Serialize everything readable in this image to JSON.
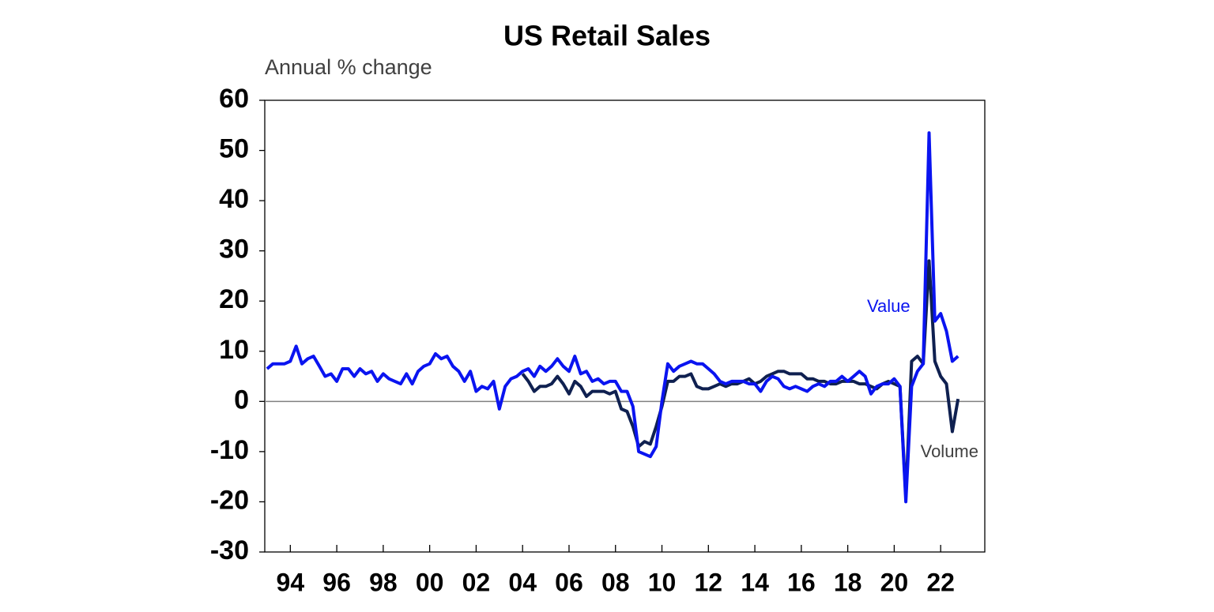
{
  "chart_data": {
    "type": "line",
    "title": "US Retail Sales",
    "subtitle": "Annual % change",
    "x": [
      1993,
      1993.25,
      1993.5,
      1993.75,
      1994,
      1994.25,
      1994.5,
      1994.75,
      1995,
      1995.25,
      1995.5,
      1995.75,
      1996,
      1996.25,
      1996.5,
      1996.75,
      1997,
      1997.25,
      1997.5,
      1997.75,
      1998,
      1998.25,
      1998.5,
      1998.75,
      1999,
      1999.25,
      1999.5,
      1999.75,
      2000,
      2000.25,
      2000.5,
      2000.75,
      2001,
      2001.25,
      2001.5,
      2001.75,
      2002,
      2002.25,
      2002.5,
      2002.75,
      2003,
      2003.25,
      2003.5,
      2003.75,
      2004,
      2004.25,
      2004.5,
      2004.75,
      2005,
      2005.25,
      2005.5,
      2005.75,
      2006,
      2006.25,
      2006.5,
      2006.75,
      2007,
      2007.25,
      2007.5,
      2007.75,
      2008,
      2008.25,
      2008.5,
      2008.75,
      2009,
      2009.25,
      2009.5,
      2009.75,
      2010,
      2010.25,
      2010.5,
      2010.75,
      2011,
      2011.25,
      2011.5,
      2011.75,
      2012,
      2012.25,
      2012.5,
      2012.75,
      2013,
      2013.25,
      2013.5,
      2013.75,
      2014,
      2014.25,
      2014.5,
      2014.75,
      2015,
      2015.25,
      2015.5,
      2015.75,
      2016,
      2016.25,
      2016.5,
      2016.75,
      2017,
      2017.25,
      2017.5,
      2017.75,
      2018,
      2018.25,
      2018.5,
      2018.75,
      2019,
      2019.25,
      2019.5,
      2019.75,
      2020,
      2020.25,
      2020.5,
      2020.75,
      2021,
      2021.25,
      2021.5,
      2021.75,
      2022,
      2022.25,
      2022.5,
      2022.75
    ],
    "series": [
      {
        "name": "Volume",
        "color": "#0f2050",
        "values": [
          null,
          null,
          null,
          null,
          null,
          null,
          null,
          null,
          null,
          null,
          null,
          null,
          null,
          null,
          null,
          null,
          null,
          null,
          null,
          null,
          null,
          null,
          null,
          null,
          null,
          null,
          null,
          null,
          null,
          null,
          null,
          null,
          null,
          null,
          null,
          null,
          null,
          null,
          null,
          null,
          null,
          null,
          null,
          null,
          5.5,
          4,
          2,
          3,
          3,
          3.5,
          5,
          3.5,
          1.5,
          4,
          3,
          1,
          2,
          2,
          2,
          1.5,
          2,
          -1.5,
          -2,
          -5,
          -9,
          -8,
          -8.5,
          -5,
          -1,
          4,
          4,
          5,
          5,
          5.5,
          3,
          2.5,
          2.5,
          3,
          3.5,
          3,
          3.5,
          3.5,
          4,
          4.5,
          3.5,
          4,
          5,
          5.5,
          6,
          6,
          5.5,
          5.5,
          5.5,
          4.5,
          4.5,
          4,
          4,
          3.5,
          3.5,
          4,
          4,
          4,
          3.5,
          3.5,
          3,
          2.5,
          3.5,
          4,
          3.5,
          3,
          -19,
          8,
          9,
          7.5,
          28,
          8,
          5,
          3.5,
          -6,
          0.5
        ]
      },
      {
        "name": "Value",
        "color": "#0a14f0",
        "values": [
          6.5,
          7.5,
          7.5,
          7.5,
          8,
          11,
          7.5,
          8.5,
          9,
          7,
          5,
          5.5,
          4,
          6.5,
          6.5,
          5,
          6.5,
          5.5,
          6,
          4,
          5.5,
          4.5,
          4,
          3.5,
          5.5,
          3.5,
          6,
          7,
          7.5,
          9.5,
          8.5,
          9,
          7,
          6,
          4,
          6,
          2,
          3,
          2.5,
          4,
          -1.5,
          3,
          4.5,
          5,
          6,
          6.5,
          5,
          7,
          6,
          7,
          8.5,
          7,
          6,
          9,
          5.5,
          6,
          4,
          4.5,
          3.5,
          4,
          4,
          2,
          2,
          -1,
          -10,
          -10.5,
          -11,
          -9,
          0,
          7.5,
          6,
          7,
          7.5,
          8,
          7.5,
          7.5,
          6.5,
          5.5,
          4,
          3.5,
          4,
          4,
          4,
          3.5,
          3.5,
          2,
          4,
          5,
          4.5,
          3,
          2.5,
          3,
          2.5,
          2,
          3,
          3.5,
          3,
          4,
          4,
          5,
          4,
          5,
          6,
          5,
          1.5,
          3,
          3.5,
          3.5,
          4.5,
          3,
          -20,
          3,
          6,
          7.5,
          53.5,
          16,
          17.5,
          14,
          8,
          9
        ]
      }
    ],
    "xlim": [
      1992.9,
      2023.9
    ],
    "xticks": [
      {
        "value": 1994,
        "label": "94"
      },
      {
        "value": 1996,
        "label": "96"
      },
      {
        "value": 1998,
        "label": "98"
      },
      {
        "value": 2000,
        "label": "00"
      },
      {
        "value": 2002,
        "label": "02"
      },
      {
        "value": 2004,
        "label": "04"
      },
      {
        "value": 2006,
        "label": "06"
      },
      {
        "value": 2008,
        "label": "08"
      },
      {
        "value": 2010,
        "label": "10"
      },
      {
        "value": 2012,
        "label": "12"
      },
      {
        "value": 2014,
        "label": "14"
      },
      {
        "value": 2016,
        "label": "16"
      },
      {
        "value": 2018,
        "label": "18"
      },
      {
        "value": 2020,
        "label": "20"
      },
      {
        "value": 2022,
        "label": "22"
      }
    ],
    "ylim": [
      -30,
      60
    ],
    "yticks": [
      -30,
      -20,
      -10,
      0,
      10,
      20,
      30,
      40,
      50,
      60
    ],
    "zero_line": true,
    "grid": false
  }
}
